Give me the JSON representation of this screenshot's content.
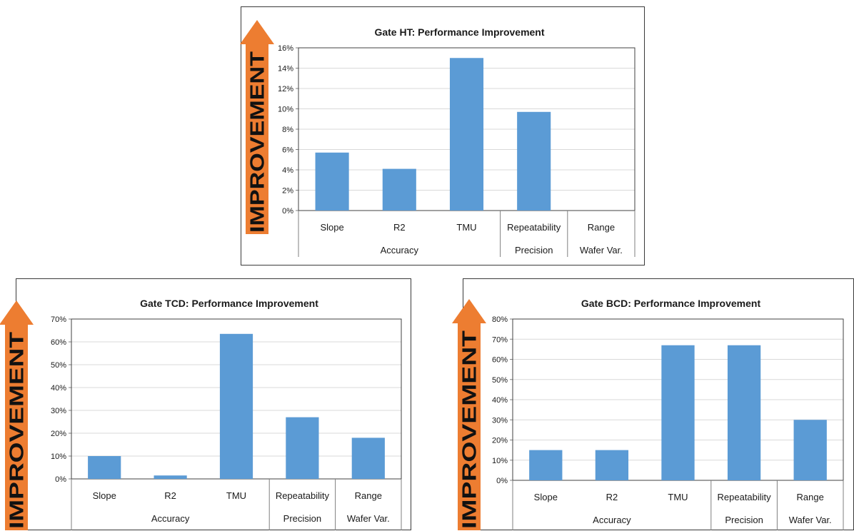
{
  "labels": {
    "improvement": "IMPROVEMENT"
  },
  "colors": {
    "bar": "#5b9bd5",
    "arrow": "#ed7d31",
    "text": "#1a1a1a",
    "grid": "#d9d9d9",
    "axis": "#7f7f7f"
  },
  "chart_data": [
    {
      "type": "bar",
      "title": "Gate HT:  Performance Improvement",
      "categories": [
        "Slope",
        "R2",
        "TMU",
        "Repeatability",
        "Range"
      ],
      "groups": [
        {
          "label": "Accuracy",
          "categories": [
            "Slope",
            "R2",
            "TMU"
          ]
        },
        {
          "label": "Precision",
          "categories": [
            "Repeatability"
          ]
        },
        {
          "label": "Wafer Var.",
          "categories": [
            "Range"
          ]
        }
      ],
      "values": [
        0.057,
        0.041,
        0.15,
        0.097,
        0
      ],
      "ylim": [
        0,
        0.16
      ],
      "yticks": [
        "0%",
        "2%",
        "4%",
        "6%",
        "8%",
        "10%",
        "12%",
        "14%",
        "16%"
      ],
      "ylabel": "IMPROVEMENT",
      "grid": true
    },
    {
      "type": "bar",
      "title": "Gate TCD:  Performance Improvement",
      "categories": [
        "Slope",
        "R2",
        "TMU",
        "Repeatability",
        "Range"
      ],
      "groups": [
        {
          "label": "Accuracy",
          "categories": [
            "Slope",
            "R2",
            "TMU"
          ]
        },
        {
          "label": "Precision",
          "categories": [
            "Repeatability"
          ]
        },
        {
          "label": "Wafer Var.",
          "categories": [
            "Range"
          ]
        }
      ],
      "values": [
        0.1,
        0.015,
        0.635,
        0.27,
        0.18
      ],
      "ylim": [
        0,
        0.7
      ],
      "yticks": [
        "0%",
        "10%",
        "20%",
        "30%",
        "40%",
        "50%",
        "60%",
        "70%"
      ],
      "ylabel": "IMPROVEMENT",
      "grid": true
    },
    {
      "type": "bar",
      "title": "Gate BCD:  Performance Improvement",
      "categories": [
        "Slope",
        "R2",
        "TMU",
        "Repeatability",
        "Range"
      ],
      "groups": [
        {
          "label": "Accuracy",
          "categories": [
            "Slope",
            "R2",
            "TMU"
          ]
        },
        {
          "label": "Precision",
          "categories": [
            "Repeatability"
          ]
        },
        {
          "label": "Wafer Var.",
          "categories": [
            "Range"
          ]
        }
      ],
      "values": [
        0.15,
        0.15,
        0.67,
        0.67,
        0.3
      ],
      "ylim": [
        0,
        0.8
      ],
      "yticks": [
        "0%",
        "10%",
        "20%",
        "30%",
        "40%",
        "50%",
        "60%",
        "70%",
        "80%"
      ],
      "ylabel": "IMPROVEMENT",
      "grid": true
    }
  ]
}
